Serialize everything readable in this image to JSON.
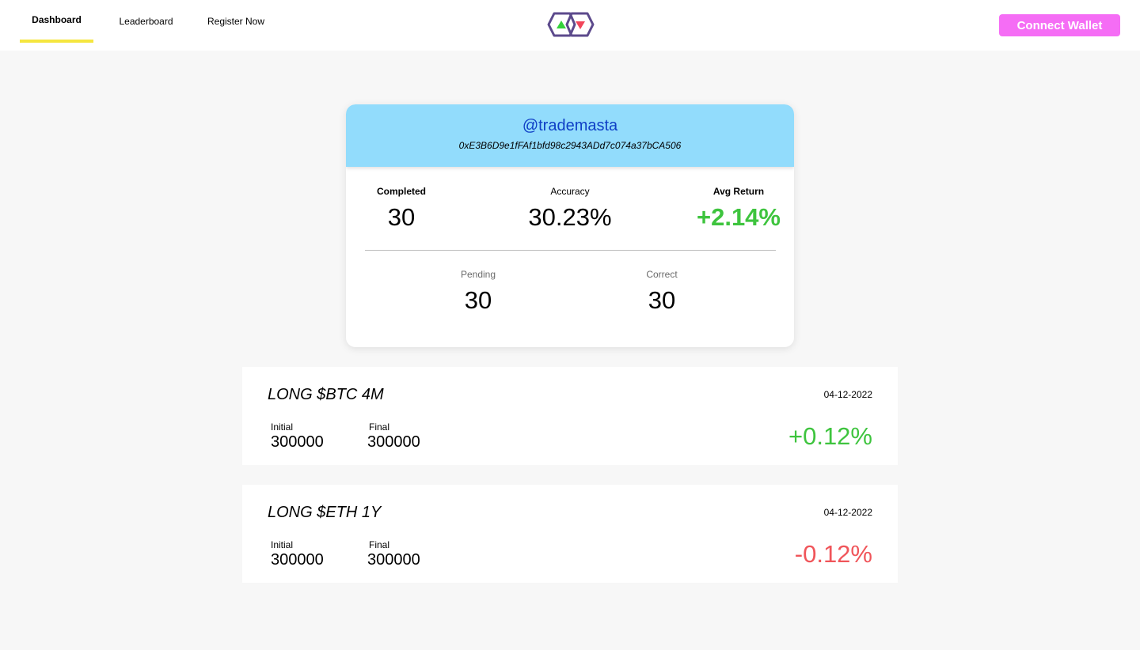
{
  "nav": {
    "items": [
      {
        "label": "Dashboard",
        "active": true
      },
      {
        "label": "Leaderboard",
        "active": false
      },
      {
        "label": "Register Now",
        "active": false
      }
    ],
    "connect_label": "Connect Wallet",
    "logo_icon": "logo-up-down-triangles-icon"
  },
  "profile": {
    "username": "@trademasta",
    "wallet": "0xE3B6D9e1fFAf1bfd98c2943ADd7c074a37bCA506",
    "completed_label": "Completed",
    "completed_value": "30",
    "accuracy_label": "Accuracy",
    "accuracy_value": "30.23%",
    "avg_return_label": "Avg Return",
    "avg_return_value": "+2.14%",
    "pending_label": "Pending",
    "pending_value": "30",
    "correct_label": "Correct",
    "correct_value": "30"
  },
  "trades": [
    {
      "title": "LONG $BTC 4M",
      "date": "04-12-2022",
      "initial_label": "Initial",
      "initial_value": "300000",
      "final_label": "Final",
      "final_value": "300000",
      "return": "+0.12%"
    },
    {
      "title": "LONG $ETH 1Y",
      "date": "04-12-2022",
      "initial_label": "Initial",
      "initial_value": "300000",
      "final_label": "Final",
      "final_value": "300000",
      "return": "-0.12%"
    }
  ],
  "colors": {
    "accent_yellow": "#f5e63f",
    "connect_pink": "#f56df5",
    "header_blue": "#92dcfc",
    "username_blue": "#0f3fc6",
    "positive_green": "#3ec43e",
    "negative_red": "#f0555a"
  }
}
